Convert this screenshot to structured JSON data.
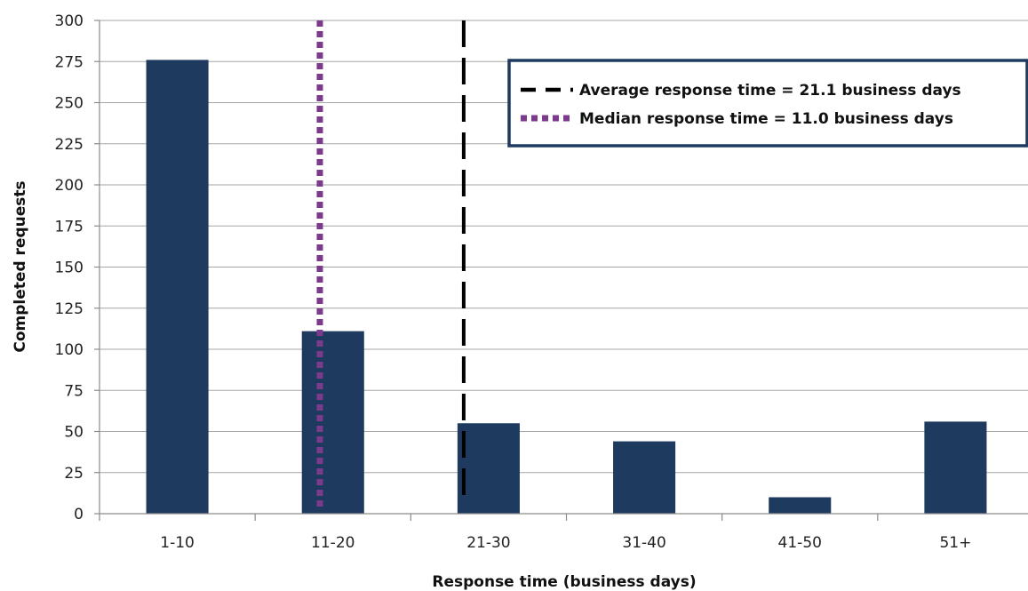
{
  "chart_data": {
    "type": "bar",
    "title": "",
    "xlabel": "Response time (business days)",
    "ylabel": "Completed requests",
    "categories": [
      "1-10",
      "11-20",
      "21-30",
      "31-40",
      "41-50",
      "51+"
    ],
    "values": [
      276,
      111,
      55,
      44,
      10,
      56
    ],
    "ylim": [
      0,
      300
    ],
    "yticks": [
      0,
      25,
      50,
      75,
      100,
      125,
      150,
      175,
      200,
      225,
      250,
      275,
      300
    ],
    "grid": true,
    "bar_color": "#1f3a5f",
    "reference_lines": [
      {
        "label": "Average response time = 21.1 business days",
        "x": 21.1,
        "style": "dashed",
        "color": "#000000"
      },
      {
        "label": "Median response time = 11.0 business days",
        "x": 11.0,
        "style": "dotted",
        "color": "#7b3a8c"
      }
    ],
    "legend_position": "top-right"
  }
}
